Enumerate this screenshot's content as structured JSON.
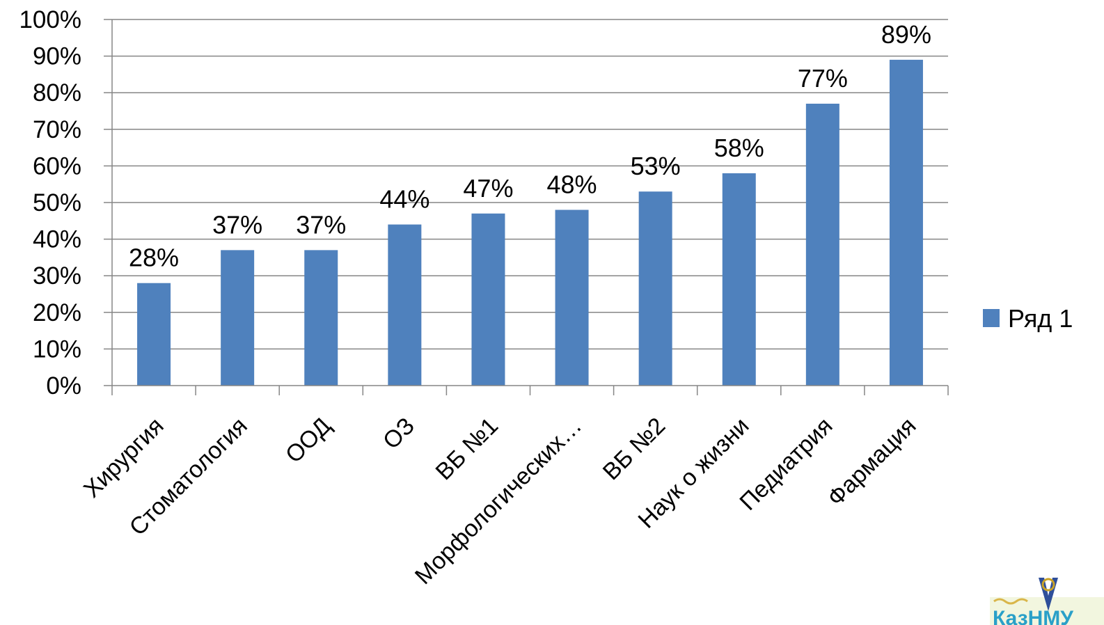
{
  "chart_data": {
    "type": "bar",
    "categories": [
      "Хирургия",
      "Стоматология",
      "ООД",
      "ОЗ",
      "ВБ №1",
      "Морфологических…",
      "ВБ №2",
      "Наук о жизни",
      "Педиатрия",
      "Фармация"
    ],
    "series": [
      {
        "name": "Ряд 1",
        "values": [
          28,
          37,
          37,
          44,
          47,
          48,
          53,
          58,
          77,
          89
        ],
        "color": "#4F81BD"
      }
    ],
    "data_labels": [
      "28%",
      "37%",
      "37%",
      "44%",
      "47%",
      "48%",
      "53%",
      "58%",
      "77%",
      "89%"
    ],
    "y_ticks": [
      "0%",
      "10%",
      "20%",
      "30%",
      "40%",
      "50%",
      "60%",
      "70%",
      "80%",
      "90%",
      "100%"
    ],
    "ylim": [
      0,
      100
    ],
    "grid": true,
    "legend": {
      "position": "right",
      "entries": [
        "Ряд 1"
      ]
    },
    "gridline_color": "#868686",
    "axis_color": "#868686"
  },
  "logo": {
    "text": "КазНМУ",
    "icon": "university-logo-icon"
  }
}
